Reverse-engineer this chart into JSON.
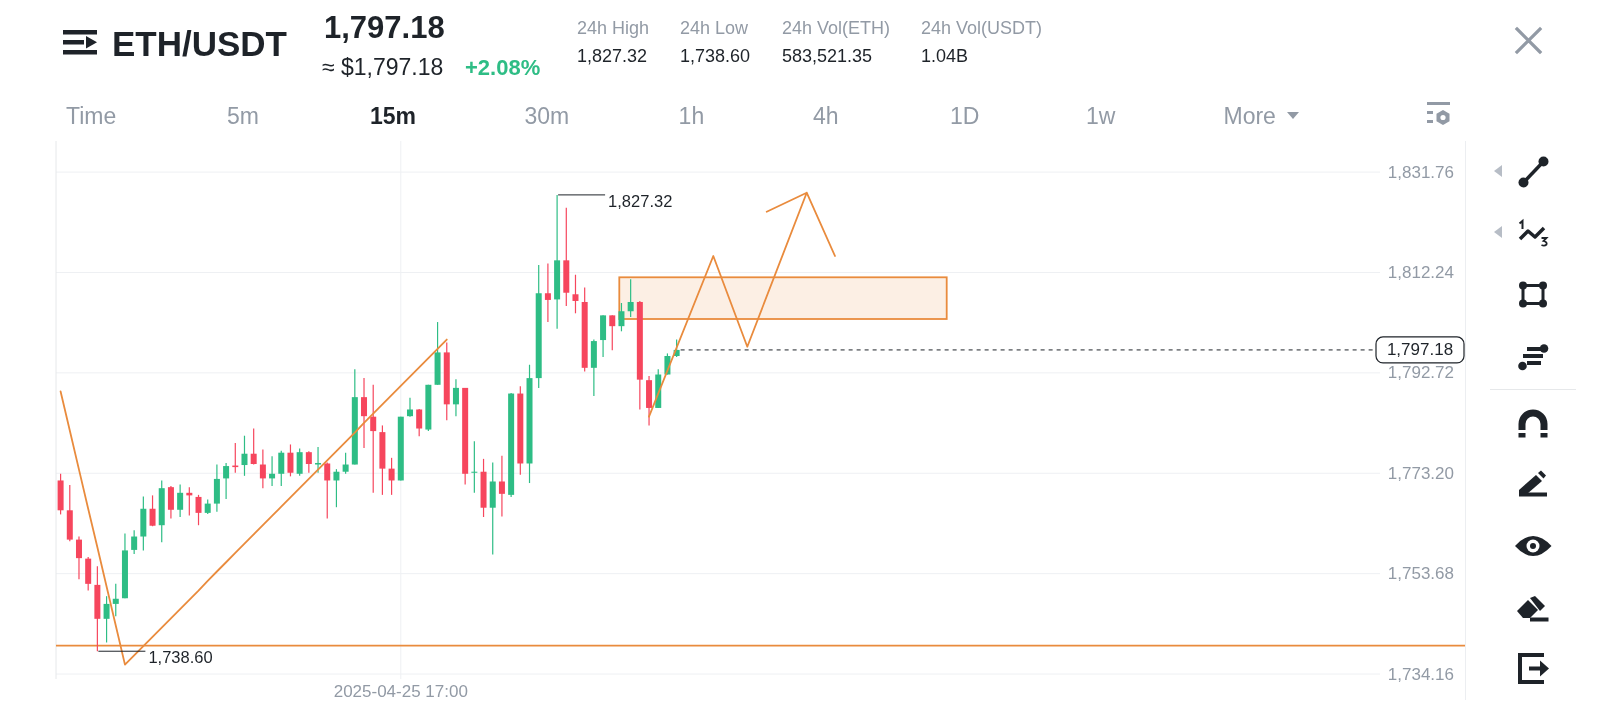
{
  "chart_data": {
    "type": "candlestick",
    "title": "ETH/USDT",
    "annotations": [
      "1,797.18",
      "≈ $1,797.18",
      "+2.08%",
      "24h High",
      "1,827.32",
      "24h Low",
      "1,738.60",
      "24h Vol(ETH)",
      "583,521.35",
      "24h Vol(USDT)",
      "1.04B",
      "Time",
      "5m",
      "15m",
      "30m",
      "1h",
      "4h",
      "1D",
      "1w",
      "More",
      "1,827.32",
      "1,738.60"
    ],
    "categories": [
      null,
      null,
      null,
      null,
      null,
      null,
      null,
      null,
      null,
      null,
      null,
      null,
      null,
      null,
      null,
      null,
      null,
      null,
      null,
      null,
      null,
      null,
      null,
      null,
      null,
      null,
      null,
      null,
      null,
      null,
      null,
      null,
      null,
      null,
      null,
      null,
      null,
      "2025-04-25 17:00",
      null,
      null,
      null,
      null,
      null,
      null,
      null,
      null,
      null,
      null,
      null,
      null,
      null,
      null,
      null,
      null,
      null,
      null,
      null,
      null,
      null,
      null,
      null,
      null,
      null,
      null,
      null,
      null,
      null,
      null,
      null,
      null,
      null,
      null,
      null,
      null,
      null,
      null,
      null,
      null,
      null,
      null,
      null,
      null,
      null,
      null,
      null,
      null,
      null,
      null,
      null,
      null,
      null,
      null,
      null,
      null,
      null,
      null,
      null,
      null,
      null,
      null,
      null,
      null,
      null,
      null,
      null,
      null,
      null,
      null,
      null,
      null,
      null,
      null,
      null,
      null,
      null,
      null,
      null,
      null,
      null,
      null,
      null,
      null,
      null,
      null,
      null,
      null,
      null,
      null,
      null,
      null,
      null,
      null,
      null,
      null,
      null,
      null,
      null,
      null,
      null,
      null,
      null,
      null,
      null,
      null
    ],
    "ohlc": [
      [
        1771.8,
        1773.1,
        1765.2,
        1766.0
      ],
      [
        1766.0,
        1770.9,
        1760.0,
        1760.3
      ],
      [
        1760.3,
        1760.9,
        1752.6,
        1756.7
      ],
      [
        1756.6,
        1756.9,
        1750.4,
        1751.7
      ],
      [
        1751.5,
        1755.1,
        1738.6,
        1744.9
      ],
      [
        1744.9,
        1749.3,
        1740.3,
        1747.8
      ],
      [
        1747.8,
        1751.7,
        1745.4,
        1748.8
      ],
      [
        1748.9,
        1761.5,
        1748.9,
        1758.2
      ],
      [
        1758.3,
        1762.1,
        1757.5,
        1760.9
      ],
      [
        1760.9,
        1768.7,
        1758.2,
        1766.3
      ],
      [
        1766.3,
        1768.9,
        1762.9,
        1763.0
      ],
      [
        1763.1,
        1771.8,
        1759.8,
        1770.3
      ],
      [
        1770.5,
        1770.7,
        1764.4,
        1766.1
      ],
      [
        1766.1,
        1771.0,
        1764.7,
        1769.4
      ],
      [
        1769.4,
        1770.5,
        1765.0,
        1768.9
      ],
      [
        1768.6,
        1769.0,
        1763.1,
        1765.5
      ],
      [
        1765.5,
        1768.1,
        1765.3,
        1767.3
      ],
      [
        1767.3,
        1774.9,
        1765.7,
        1772.1
      ],
      [
        1772.2,
        1775.2,
        1768.2,
        1774.6
      ],
      [
        1774.7,
        1779.1,
        1773.3,
        1774.4
      ],
      [
        1774.8,
        1780.5,
        1772.7,
        1777.0
      ],
      [
        1777.0,
        1781.9,
        1774.9,
        1775.0
      ],
      [
        1774.9,
        1777.8,
        1770.3,
        1772.2
      ],
      [
        1772.2,
        1776.5,
        1770.7,
        1773.1
      ],
      [
        1773.1,
        1777.6,
        1770.7,
        1777.2
      ],
      [
        1777.2,
        1778.8,
        1772.6,
        1773.3
      ],
      [
        1773.1,
        1778.0,
        1772.7,
        1777.3
      ],
      [
        1777.3,
        1777.5,
        1773.3,
        1775.0
      ],
      [
        1774.9,
        1778.3,
        1773.3,
        1775.2
      ],
      [
        1775.1,
        1775.3,
        1764.4,
        1771.8
      ],
      [
        1771.8,
        1774.0,
        1766.6,
        1773.5
      ],
      [
        1773.5,
        1777.2,
        1773.1,
        1774.9
      ],
      [
        1774.9,
        1793.4,
        1774.9,
        1788.0
      ],
      [
        1788.0,
        1791.7,
        1778.1,
        1784.3
      ],
      [
        1784.2,
        1790.4,
        1769.4,
        1781.4
      ],
      [
        1781.2,
        1782.5,
        1769.0,
        1774.1
      ],
      [
        1774.1,
        1776.2,
        1769.0,
        1771.8
      ],
      [
        1771.8,
        1784.2,
        1771.8,
        1784.2
      ],
      [
        1784.3,
        1787.9,
        1784.2,
        1785.6
      ],
      [
        1785.6,
        1785.7,
        1780.4,
        1781.9
      ],
      [
        1781.7,
        1790.4,
        1781.4,
        1790.4
      ],
      [
        1790.4,
        1802.6,
        1790.4,
        1796.7
      ],
      [
        1796.7,
        1798.6,
        1783.5,
        1786.6
      ],
      [
        1786.6,
        1791.5,
        1784.3,
        1789.8
      ],
      [
        1789.8,
        1789.8,
        1771.0,
        1773.1
      ],
      [
        1773.3,
        1779.4,
        1769.4,
        1773.5
      ],
      [
        1773.5,
        1776.0,
        1764.7,
        1766.5
      ],
      [
        1766.5,
        1775.3,
        1757.4,
        1771.6
      ],
      [
        1771.6,
        1776.6,
        1764.8,
        1769.2
      ],
      [
        1769.0,
        1788.8,
        1768.6,
        1788.7
      ],
      [
        1788.7,
        1790.1,
        1772.9,
        1775.1
      ],
      [
        1775.1,
        1794.3,
        1771.3,
        1791.7
      ],
      [
        1791.7,
        1813.7,
        1789.8,
        1808.2
      ],
      [
        1808.2,
        1814.0,
        1802.6,
        1806.9
      ],
      [
        1807.0,
        1827.32,
        1801.3,
        1814.6
      ],
      [
        1814.6,
        1824.8,
        1805.7,
        1808.3
      ],
      [
        1808.0,
        1811.8,
        1804.3,
        1806.7
      ],
      [
        1806.5,
        1809.3,
        1793.0,
        1793.7
      ],
      [
        1793.7,
        1799.2,
        1788.2,
        1798.9
      ],
      [
        1799.1,
        1803.9,
        1795.8,
        1803.9
      ],
      [
        1803.9,
        1803.9,
        1797.1,
        1801.8
      ],
      [
        1801.8,
        1806.3,
        1800.8,
        1804.7
      ],
      [
        1804.7,
        1810.9,
        1803.6,
        1806.5
      ],
      [
        1806.5,
        1806.7,
        1785.6,
        1791.4
      ],
      [
        1791.3,
        1792.1,
        1782.5,
        1785.9
      ],
      [
        1785.9,
        1793.4,
        1785.9,
        1792.4
      ],
      [
        1792.4,
        1796.5,
        1792.4,
        1796.0
      ],
      [
        1796.0,
        1799.2,
        1795.8,
        1797.18
      ],
      null,
      null,
      null,
      null,
      null,
      null,
      null,
      null,
      null,
      null,
      null,
      null,
      null,
      null,
      null,
      null,
      null,
      null,
      null,
      null,
      null,
      null,
      null,
      null,
      null,
      null,
      null,
      null,
      null,
      null,
      null,
      null,
      null,
      null,
      null,
      null,
      null,
      null,
      null,
      null,
      null,
      null,
      null,
      null,
      null,
      null,
      null,
      null,
      null,
      null,
      null,
      null,
      null,
      null,
      null,
      null,
      null,
      null,
      null,
      null,
      null,
      null,
      null,
      null,
      null,
      null,
      null,
      null,
      null,
      null,
      null,
      null,
      null,
      null,
      null,
      null
    ],
    "colors": [
      "#f6465d",
      "#f6465d",
      "#f6465d",
      "#f6465d",
      "#f6465d",
      "#2ebd85",
      "#2ebd85",
      "#2ebd85",
      "#2ebd85",
      "#2ebd85",
      "#f6465d",
      "#2ebd85",
      "#f6465d",
      "#2ebd85",
      "#f6465d",
      "#f6465d",
      "#2ebd85",
      "#2ebd85",
      "#2ebd85",
      "#f6465d",
      "#2ebd85",
      "#f6465d",
      "#f6465d",
      "#2ebd85",
      "#2ebd85",
      "#f6465d",
      "#2ebd85",
      "#f6465d",
      "#2ebd85",
      "#f6465d",
      "#2ebd85",
      "#2ebd85",
      "#2ebd85",
      "#f6465d",
      "#f6465d",
      "#f6465d",
      "#f6465d",
      "#2ebd85",
      "#2ebd85",
      "#f6465d",
      "#2ebd85",
      "#2ebd85",
      "#f6465d",
      "#2ebd85",
      "#f6465d",
      "#2ebd85",
      "#f6465d",
      "#2ebd85",
      "#f6465d",
      "#2ebd85",
      "#f6465d",
      "#2ebd85",
      "#2ebd85",
      "#f6465d",
      "#2ebd85",
      "#f6465d",
      "#f6465d",
      "#f6465d",
      "#2ebd85",
      "#2ebd85",
      "#f6465d",
      "#2ebd85",
      "#2ebd85",
      "#f6465d",
      "#f6465d",
      "#2ebd85",
      "#2ebd85",
      "#2ebd85",
      null,
      null,
      null,
      null,
      null,
      null,
      null,
      null,
      null,
      null,
      null,
      null,
      null,
      null,
      null,
      null,
      null,
      null,
      null,
      null,
      null,
      null,
      null,
      null,
      null,
      null,
      null,
      null,
      null,
      null,
      null,
      null,
      null,
      null,
      null,
      null,
      null,
      null,
      null,
      null,
      null,
      null,
      null,
      null,
      null,
      null,
      null,
      null,
      null,
      null,
      null,
      null,
      null,
      null,
      null,
      null,
      null,
      null,
      null,
      null,
      null,
      null,
      null,
      null,
      null,
      null,
      null,
      null,
      null,
      null,
      null,
      null,
      null,
      null,
      null,
      null
    ],
    "series": [
      {
        "type": "line",
        "color": "#e98b3d",
        "values": [
          1789.1,
          1781.5,
          1773.9,
          1766.3,
          1758.8,
          1751.2,
          1743.6,
          1736.0,
          1737.8,
          1739.6,
          1741.4,
          1743.2,
          1745.0,
          1746.8,
          1748.6,
          1750.4,
          1752.3,
          1754.1,
          1755.9,
          1757.7,
          1759.5,
          1761.3,
          1763.1,
          1764.9,
          1766.7,
          1768.5,
          1770.3,
          1772.1,
          1773.9,
          1775.7,
          1777.5,
          1779.3,
          1781.1,
          1783.0,
          1784.8,
          1786.6,
          1788.4,
          1790.2,
          1792.0,
          1793.8,
          1795.6,
          1797.4,
          1799.2,
          null,
          null,
          null,
          null,
          null,
          null,
          null,
          null,
          null,
          null,
          null,
          null,
          null,
          null,
          null,
          null,
          null,
          null,
          null,
          null,
          null,
          null,
          null,
          null,
          null,
          null,
          null,
          null,
          null,
          null,
          null,
          null,
          null,
          null,
          null,
          null,
          null,
          null,
          null,
          null,
          null,
          null,
          null,
          null,
          null,
          null,
          null,
          null,
          null,
          null,
          null,
          null,
          null,
          null,
          null,
          null,
          null,
          null,
          null,
          null,
          null,
          null,
          null,
          null,
          null,
          null,
          null,
          null,
          null,
          null,
          null,
          null,
          null,
          null,
          null,
          null,
          null,
          null,
          null,
          null,
          null,
          null,
          null,
          null,
          null,
          null,
          null,
          null,
          null,
          null,
          null,
          null,
          null,
          null,
          null,
          null,
          null,
          null,
          null,
          null,
          null
        ]
      }
    ],
    "ylim": [
      1733.2,
      1837.8
    ],
    "yticks": [
      {
        "value": 1734.16,
        "label": "1,734.16"
      },
      {
        "value": 1753.68,
        "label": "1,753.68"
      },
      {
        "value": 1773.2,
        "label": "1,773.20"
      },
      {
        "value": 1792.72,
        "label": "1,792.72"
      },
      {
        "value": 1812.24,
        "label": "1,812.24"
      },
      {
        "value": 1831.76,
        "label": "1,831.76"
      }
    ],
    "grid": true,
    "ref_lines": [
      {
        "axis": "y",
        "value": 1739.7,
        "color": "#e98b3d"
      },
      {
        "axis": "y",
        "value": 1797.18,
        "label": "1,797.18",
        "line_style": "dashed",
        "color": "#1e2329"
      }
    ]
  }
}
